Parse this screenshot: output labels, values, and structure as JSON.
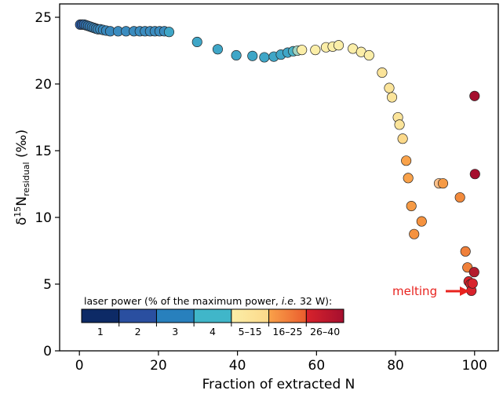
{
  "chart_data": {
    "type": "scatter",
    "title": "",
    "xlabel": "Fraction of extracted N",
    "ylabel": {
      "prefix": "δ",
      "sup": "15",
      "main": "N",
      "sub": "residual",
      "suffix": " (‰)"
    },
    "xlim": [
      -5,
      106
    ],
    "ylim": [
      0,
      26
    ],
    "x_ticks": [
      0,
      20,
      40,
      60,
      80,
      100
    ],
    "y_ticks": [
      0,
      5,
      10,
      15,
      20,
      25
    ],
    "grid": false,
    "colorbar": {
      "title_plain": "laser power (% of the maximum power, ",
      "title_italic": "i.e.",
      "title_end": " 32 W):",
      "bins": [
        {
          "label": "1",
          "color": "#0d2a66"
        },
        {
          "label": "2",
          "color": "#2a4fa0"
        },
        {
          "label": "3",
          "color": "#2880bd"
        },
        {
          "label": "4",
          "color": "#40b6c9"
        },
        {
          "label": "5–15",
          "color": "#fbeea8",
          "gradient_to": "#fcd98a"
        },
        {
          "label": "16–25",
          "color": "#f9a24a",
          "gradient_to": "#ea5c2d"
        },
        {
          "label": "26–40",
          "color": "#d8232c",
          "gradient_to": "#a50f2e"
        }
      ]
    },
    "annotation": {
      "text": "melting",
      "color": "#e8231f",
      "x": 99.2,
      "y": 4.5
    },
    "points": [
      {
        "x": 0.2,
        "y": 24.45,
        "c": "#2c5ea8"
      },
      {
        "x": 0.7,
        "y": 24.45,
        "c": "#2c5ea8"
      },
      {
        "x": 1.2,
        "y": 24.45,
        "c": "#2f6aac"
      },
      {
        "x": 1.7,
        "y": 24.4,
        "c": "#3072b0"
      },
      {
        "x": 2.2,
        "y": 24.35,
        "c": "#3278b4"
      },
      {
        "x": 2.7,
        "y": 24.3,
        "c": "#347cb7"
      },
      {
        "x": 3.2,
        "y": 24.25,
        "c": "#3680b9"
      },
      {
        "x": 3.7,
        "y": 24.2,
        "c": "#3882ba"
      },
      {
        "x": 4.2,
        "y": 24.15,
        "c": "#3884bb"
      },
      {
        "x": 4.7,
        "y": 24.1,
        "c": "#3886bc"
      },
      {
        "x": 5.3,
        "y": 24.1,
        "c": "#3888bd"
      },
      {
        "x": 6.0,
        "y": 24.05,
        "c": "#3888bd"
      },
      {
        "x": 6.8,
        "y": 24.0,
        "c": "#3888bd"
      },
      {
        "x": 7.8,
        "y": 23.95,
        "c": "#3888bd"
      },
      {
        "x": 9.8,
        "y": 23.95,
        "c": "#3b8cbf"
      },
      {
        "x": 11.8,
        "y": 23.95,
        "c": "#3b8cbf"
      },
      {
        "x": 13.8,
        "y": 23.95,
        "c": "#3b8cbf"
      },
      {
        "x": 15.3,
        "y": 23.95,
        "c": "#3b8cbf"
      },
      {
        "x": 16.6,
        "y": 23.95,
        "c": "#3b8cbf"
      },
      {
        "x": 17.9,
        "y": 23.95,
        "c": "#3b8cbf"
      },
      {
        "x": 19.1,
        "y": 23.95,
        "c": "#3b8cbf"
      },
      {
        "x": 20.3,
        "y": 23.95,
        "c": "#3b8cbf"
      },
      {
        "x": 21.5,
        "y": 23.95,
        "c": "#3b8cbf"
      },
      {
        "x": 22.7,
        "y": 23.9,
        "c": "#3fa6c7"
      },
      {
        "x": 29.8,
        "y": 23.15,
        "c": "#3fa6c7"
      },
      {
        "x": 35.0,
        "y": 22.6,
        "c": "#3fa6c7"
      },
      {
        "x": 39.7,
        "y": 22.15,
        "c": "#3fa6c7"
      },
      {
        "x": 43.8,
        "y": 22.1,
        "c": "#3fa6c7"
      },
      {
        "x": 46.8,
        "y": 22.0,
        "c": "#3fa6c7"
      },
      {
        "x": 49.2,
        "y": 22.05,
        "c": "#3fa6c7"
      },
      {
        "x": 51.0,
        "y": 22.2,
        "c": "#3fa6c7"
      },
      {
        "x": 52.7,
        "y": 22.35,
        "c": "#3fa6c7"
      },
      {
        "x": 54.1,
        "y": 22.45,
        "c": "#4ab4c8"
      },
      {
        "x": 55.2,
        "y": 22.5,
        "c": "#9fd2c0"
      },
      {
        "x": 56.3,
        "y": 22.55,
        "c": "#fbeea8"
      },
      {
        "x": 59.7,
        "y": 22.55,
        "c": "#fbeea8"
      },
      {
        "x": 62.4,
        "y": 22.75,
        "c": "#fbeea8"
      },
      {
        "x": 64.1,
        "y": 22.8,
        "c": "#fbeea8"
      },
      {
        "x": 65.6,
        "y": 22.9,
        "c": "#fbeea8"
      },
      {
        "x": 69.2,
        "y": 22.65,
        "c": "#fbeea8"
      },
      {
        "x": 71.3,
        "y": 22.4,
        "c": "#fbeea8"
      },
      {
        "x": 73.3,
        "y": 22.15,
        "c": "#fbeea8"
      },
      {
        "x": 76.6,
        "y": 20.85,
        "c": "#fbe49a"
      },
      {
        "x": 78.4,
        "y": 19.7,
        "c": "#fbe49a"
      },
      {
        "x": 79.1,
        "y": 19.0,
        "c": "#fbe49a"
      },
      {
        "x": 80.6,
        "y": 17.5,
        "c": "#fbe49a"
      },
      {
        "x": 81.0,
        "y": 16.95,
        "c": "#fbe49a"
      },
      {
        "x": 81.8,
        "y": 15.9,
        "c": "#fcd98a"
      },
      {
        "x": 82.7,
        "y": 14.25,
        "c": "#f9a24a"
      },
      {
        "x": 83.2,
        "y": 12.95,
        "c": "#f9a24a"
      },
      {
        "x": 84.0,
        "y": 10.85,
        "c": "#f59a45"
      },
      {
        "x": 84.7,
        "y": 8.75,
        "c": "#f5923f"
      },
      {
        "x": 86.6,
        "y": 9.7,
        "c": "#f5923f"
      },
      {
        "x": 91.0,
        "y": 12.55,
        "c": "#fac08a"
      },
      {
        "x": 92.0,
        "y": 12.55,
        "c": "#f59a45"
      },
      {
        "x": 96.3,
        "y": 11.5,
        "c": "#f28a3c"
      },
      {
        "x": 97.7,
        "y": 7.45,
        "c": "#f0803a"
      },
      {
        "x": 98.2,
        "y": 6.25,
        "c": "#f0803a"
      },
      {
        "x": 98.5,
        "y": 5.2,
        "c": "#d8232c"
      },
      {
        "x": 99.0,
        "y": 5.0,
        "c": "#d8232c"
      },
      {
        "x": 99.2,
        "y": 4.5,
        "c": "#d8232c"
      },
      {
        "x": 99.5,
        "y": 5.05,
        "c": "#d8232c"
      },
      {
        "x": 99.9,
        "y": 5.9,
        "c": "#b31b2d"
      },
      {
        "x": 100.0,
        "y": 19.1,
        "c": "#a50f2e"
      },
      {
        "x": 100.1,
        "y": 13.25,
        "c": "#a50f2e"
      }
    ]
  }
}
